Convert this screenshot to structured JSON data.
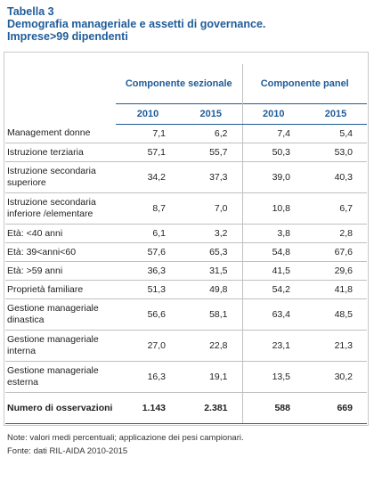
{
  "title": {
    "line1": "Tabella 3",
    "line2": "Demografia manageriale e assetti di governance.",
    "line3": "Imprese>99 dipendenti"
  },
  "groups": {
    "sezionale": "Componente sezionale",
    "panel": "Componente panel"
  },
  "years": [
    "2010",
    "2015",
    "2010",
    "2015"
  ],
  "rows": [
    {
      "label": "Management donne",
      "values": [
        "7,1",
        "6,2",
        "7,4",
        "5,4"
      ]
    },
    {
      "label": "Istruzione terziaria",
      "values": [
        "57,1",
        "55,7",
        "50,3",
        "53,0"
      ]
    },
    {
      "label": "Istruzione secondaria superiore",
      "values": [
        "34,2",
        "37,3",
        "39,0",
        "40,3"
      ]
    },
    {
      "label": "Istruzione secondaria inferiore /elementare",
      "values": [
        "8,7",
        "7,0",
        "10,8",
        "6,7"
      ]
    },
    {
      "label": "Età: <40 anni",
      "values": [
        "6,1",
        "3,2",
        "3,8",
        "2,8"
      ]
    },
    {
      "label": "Età: 39<anni<60",
      "values": [
        "57,6",
        "65,3",
        "54,8",
        "67,6"
      ]
    },
    {
      "label": "Età: >59 anni",
      "values": [
        "36,3",
        "31,5",
        "41,5",
        "29,6"
      ]
    },
    {
      "label": "Proprietà familiare",
      "values": [
        "51,3",
        "49,8",
        "54,2",
        "41,8"
      ]
    },
    {
      "label": "Gestione manageriale dinastica",
      "values": [
        "56,6",
        "58,1",
        "63,4",
        "48,5"
      ]
    },
    {
      "label": "Gestione manageriale interna",
      "values": [
        "27,0",
        "22,8",
        "23,1",
        "21,3"
      ]
    },
    {
      "label": "Gestione manageriale esterna",
      "values": [
        "16,3",
        "19,1",
        "13,5",
        "30,2"
      ]
    }
  ],
  "total": {
    "label": "Numero di osservazioni",
    "values": [
      "1.143",
      "2.381",
      "588",
      "669"
    ]
  },
  "notes": {
    "note": "Note: valori medi percentuali; applicazione dei pesi campionari.",
    "source": "Fonte: dati RIL-AIDA 2010-2015"
  }
}
